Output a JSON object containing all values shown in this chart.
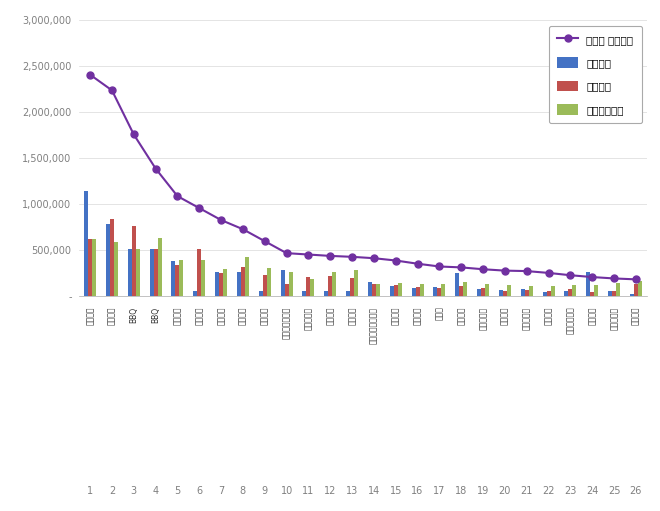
{
  "brands": [
    "교촌치킨",
    "맘스터치",
    "BBQ",
    "BBQ",
    "굽네치킨",
    "엽기치킨",
    "네네치킨",
    "바른치킨",
    "노랑통닭",
    "처갓집양념치킨",
    "두찜이통닭",
    "순수치킨",
    "부어치킨",
    "호식이두마리치킨",
    "페리카나",
    "또래오래",
    "아웃닭",
    "땅콩치킨",
    "지코바치킨",
    "깐부치킨",
    "멕시칸치킨",
    "디디치킨",
    "오븐마투치킨",
    "마파치킨",
    "홈랜드치킨",
    "찰닭치킨"
  ],
  "x_labels": [
    "1",
    "2",
    "3",
    "4",
    "5",
    "6",
    "7",
    "8",
    "9",
    "10",
    "11",
    "12",
    "13",
    "14",
    "15",
    "16",
    "17",
    "18",
    "19",
    "20",
    "21",
    "22",
    "23",
    "24",
    "25",
    "26"
  ],
  "participation": [
    1150000,
    790000,
    510000,
    510000,
    390000,
    55000,
    270000,
    270000,
    55000,
    290000,
    55000,
    55000,
    55000,
    160000,
    110000,
    90000,
    100000,
    250000,
    80000,
    70000,
    80000,
    50000,
    55000,
    270000,
    55000,
    30000
  ],
  "communication": [
    620000,
    840000,
    770000,
    510000,
    340000,
    520000,
    250000,
    320000,
    230000,
    140000,
    210000,
    220000,
    200000,
    130000,
    120000,
    100000,
    95000,
    110000,
    90000,
    55000,
    70000,
    60000,
    80000,
    50000,
    60000,
    130000
  ],
  "community": [
    620000,
    590000,
    510000,
    640000,
    395000,
    400000,
    300000,
    430000,
    305000,
    260000,
    190000,
    270000,
    290000,
    140000,
    145000,
    140000,
    130000,
    160000,
    130000,
    120000,
    115000,
    110000,
    120000,
    125000,
    145000,
    170000
  ],
  "brand_reputation": [
    2410000,
    2240000,
    1760000,
    1390000,
    1090000,
    960000,
    830000,
    730000,
    600000,
    470000,
    455000,
    440000,
    430000,
    415000,
    390000,
    355000,
    325000,
    315000,
    295000,
    280000,
    275000,
    255000,
    230000,
    210000,
    195000,
    185000
  ],
  "bar_width": 0.55,
  "colors": {
    "participation": "#4472C4",
    "communication": "#C0504D",
    "community": "#9BBB59",
    "brand_reputation": "#7030A0"
  },
  "legend_labels": [
    "참여지수",
    "소통지수",
    "커뮤니티지수",
    "브랜드 평판지수"
  ],
  "ylim": [
    0,
    3000000
  ],
  "yticks": [
    0,
    500000,
    1000000,
    1500000,
    2000000,
    2500000,
    3000000
  ],
  "bg_color": "#FFFFFF",
  "grid_color": "#D9D9D9",
  "tick_color": "#808080"
}
